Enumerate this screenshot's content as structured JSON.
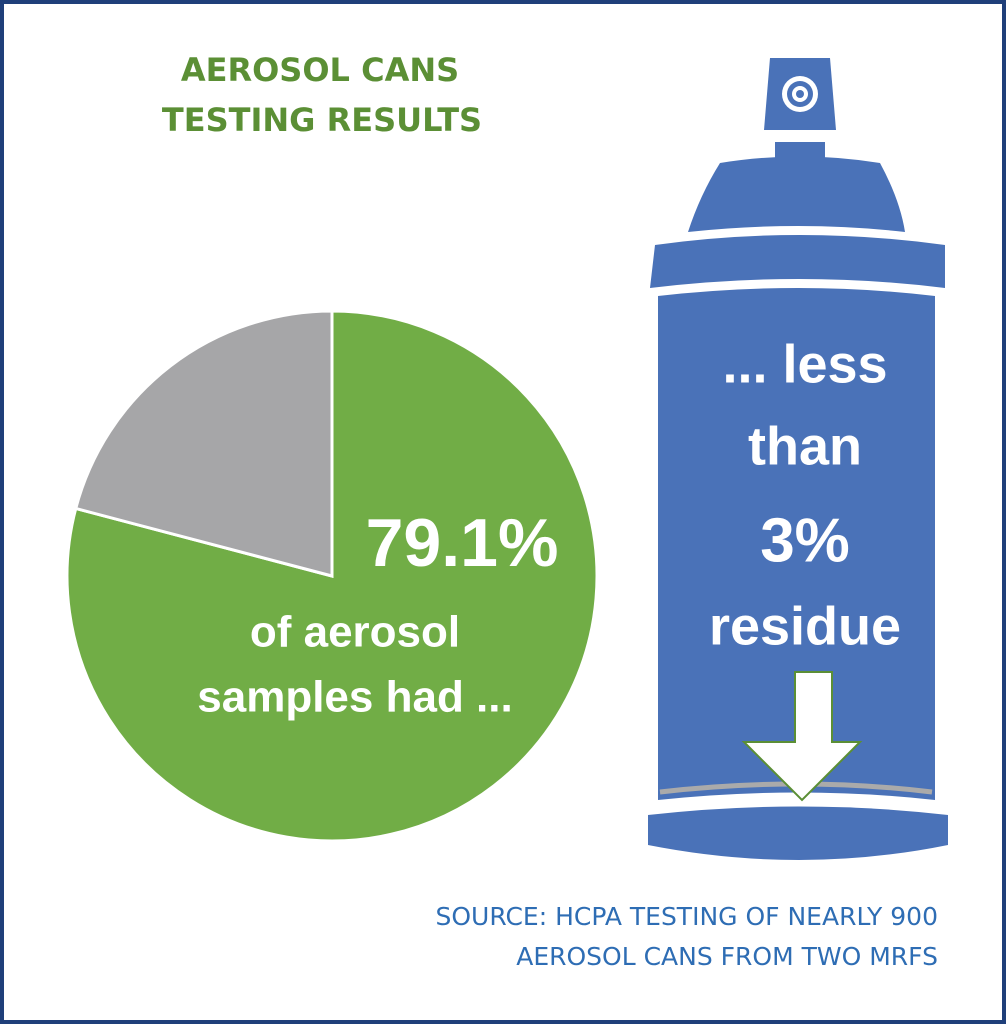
{
  "chart_data": {
    "type": "pie",
    "title": [
      "AEROSOL CANS",
      "TESTING RESULTS"
    ],
    "values": [
      79.1,
      20.9
    ],
    "value_labels": [
      "79.1%",
      null
    ],
    "colors": [
      "#71ad46",
      "#a6a6a8"
    ],
    "pie_caption": [
      "of aerosol",
      "samples had ..."
    ],
    "can_text": [
      "... less",
      "than",
      "3%",
      "residue"
    ],
    "source": [
      "SOURCE: HCPA TESTING OF NEARLY 900",
      "AEROSOL CANS FROM TWO MRFS"
    ]
  }
}
